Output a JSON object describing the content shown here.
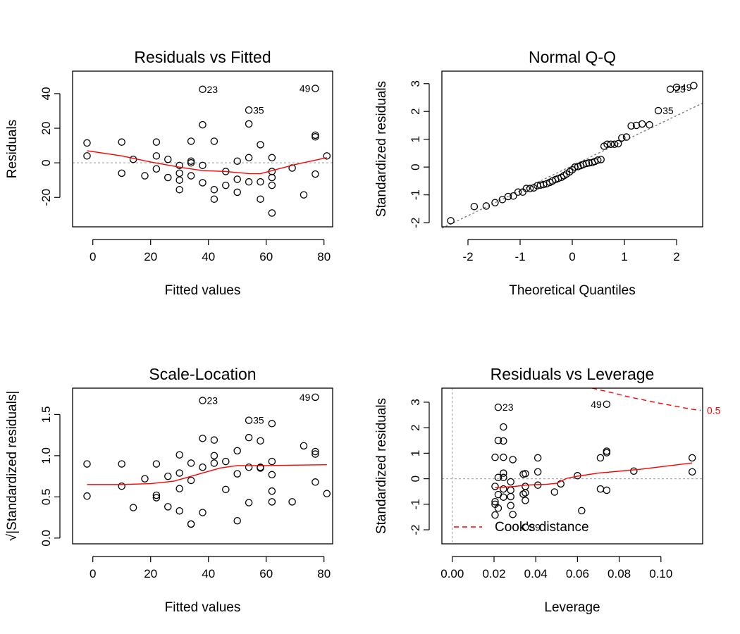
{
  "chart_data": [
    {
      "type": "scatter",
      "title": "Residuals vs Fitted",
      "xlabel": "Fitted values",
      "ylabel": "Residuals",
      "xlim": [
        -7,
        83
      ],
      "ylim": [
        -37,
        53
      ],
      "xticks": [
        0,
        20,
        40,
        60,
        80
      ],
      "yticks": [
        -20,
        0,
        20,
        40
      ],
      "tick_labels_x": [
        "0",
        "20",
        "40",
        "60",
        "80"
      ],
      "tick_labels_y": [
        "-20",
        "0",
        "20",
        "40"
      ],
      "reference_lines": [
        {
          "orientation": "h",
          "value": 0,
          "style": "dotted",
          "color": "#aaaaaa"
        }
      ],
      "points": [
        [
          -2,
          11.5
        ],
        [
          -2,
          4
        ],
        [
          10,
          12
        ],
        [
          10,
          -6
        ],
        [
          14,
          2
        ],
        [
          18,
          -7.5
        ],
        [
          22,
          12
        ],
        [
          22,
          4
        ],
        [
          22,
          -3.5
        ],
        [
          26,
          2
        ],
        [
          26,
          -8.5
        ],
        [
          30,
          -1.5
        ],
        [
          30,
          -6
        ],
        [
          30,
          -10
        ],
        [
          30,
          -15.5
        ],
        [
          34,
          12.5
        ],
        [
          34,
          1
        ],
        [
          34,
          0
        ],
        [
          34,
          -7.5
        ],
        [
          38,
          42.5
        ],
        [
          38,
          22
        ],
        [
          38,
          -1.5
        ],
        [
          38,
          -11.5
        ],
        [
          42,
          12.5
        ],
        [
          42,
          -15.5
        ],
        [
          42,
          -21
        ],
        [
          46,
          -5
        ],
        [
          46,
          -13
        ],
        [
          50,
          1
        ],
        [
          50,
          -9.5
        ],
        [
          50,
          -17
        ],
        [
          54,
          30.5
        ],
        [
          54,
          22.5
        ],
        [
          54,
          3
        ],
        [
          54,
          -11
        ],
        [
          58,
          10.5
        ],
        [
          58,
          -11
        ],
        [
          58,
          -21
        ],
        [
          62,
          3
        ],
        [
          62,
          -5
        ],
        [
          62,
          -8.5
        ],
        [
          62,
          -13
        ],
        [
          62,
          -29
        ],
        [
          69,
          -3
        ],
        [
          73,
          -18.5
        ],
        [
          77,
          43
        ],
        [
          77,
          16
        ],
        [
          77,
          15
        ],
        [
          77,
          -6.5
        ],
        [
          81,
          4
        ]
      ],
      "smoother": [
        [
          -2,
          7
        ],
        [
          10,
          4
        ],
        [
          20,
          0.5
        ],
        [
          30,
          -2.5
        ],
        [
          38,
          -4.5
        ],
        [
          46,
          -5
        ],
        [
          54,
          -6.2
        ],
        [
          58,
          -6.3
        ],
        [
          62,
          -4.5
        ],
        [
          70,
          -1
        ],
        [
          81,
          3
        ]
      ],
      "smoother_color": "#ff0000",
      "labels": [
        {
          "text": "23",
          "x": 38,
          "y": 42.5,
          "side": "right"
        },
        {
          "text": "35",
          "x": 54,
          "y": 30.5,
          "side": "right"
        },
        {
          "text": "49",
          "x": 77,
          "y": 43,
          "side": "left"
        }
      ]
    },
    {
      "type": "scatter",
      "title": "Normal Q-Q",
      "xlabel": "Theoretical Quantiles",
      "ylabel": "Standardized residuals",
      "xlim": [
        -2.5,
        2.5
      ],
      "ylim": [
        -2.15,
        3.45
      ],
      "xticks": [
        -2,
        -1,
        0,
        1,
        2
      ],
      "yticks": [
        -2,
        -1,
        0,
        1,
        2,
        3
      ],
      "tick_labels_x": [
        "-2",
        "-1",
        "0",
        "1",
        "2"
      ],
      "tick_labels_y": [
        "-2",
        "-1",
        "0",
        "1",
        "2",
        "3"
      ],
      "reference_lines": [
        {
          "type": "qqline",
          "points": [
            [
              -2.5,
              -2.2
            ],
            [
              2.5,
              2.3
            ]
          ],
          "style": "dotted",
          "color": "#777777"
        }
      ],
      "points": [
        [
          -2.33,
          -1.93
        ],
        [
          -1.88,
          -1.42
        ],
        [
          -1.65,
          -1.4
        ],
        [
          -1.48,
          -1.28
        ],
        [
          -1.34,
          -1.17
        ],
        [
          -1.23,
          -1.06
        ],
        [
          -1.13,
          -1.04
        ],
        [
          -1.04,
          -0.9
        ],
        [
          -0.95,
          -0.9
        ],
        [
          -0.88,
          -0.77
        ],
        [
          -0.81,
          -0.77
        ],
        [
          -0.74,
          -0.75
        ],
        [
          -0.67,
          -0.67
        ],
        [
          -0.61,
          -0.65
        ],
        [
          -0.55,
          -0.63
        ],
        [
          -0.49,
          -0.6
        ],
        [
          -0.43,
          -0.55
        ],
        [
          -0.38,
          -0.5
        ],
        [
          -0.32,
          -0.45
        ],
        [
          -0.27,
          -0.41
        ],
        [
          -0.21,
          -0.37
        ],
        [
          -0.16,
          -0.31
        ],
        [
          -0.11,
          -0.25
        ],
        [
          -0.05,
          -0.17
        ],
        [
          0,
          -0.1
        ],
        [
          0.05,
          0
        ],
        [
          0.11,
          0.02
        ],
        [
          0.16,
          0.05
        ],
        [
          0.21,
          0.09
        ],
        [
          0.27,
          0.13
        ],
        [
          0.32,
          0.15
        ],
        [
          0.38,
          0.16
        ],
        [
          0.43,
          0.2
        ],
        [
          0.49,
          0.25
        ],
        [
          0.55,
          0.27
        ],
        [
          0.61,
          0.75
        ],
        [
          0.67,
          0.82
        ],
        [
          0.74,
          0.82
        ],
        [
          0.81,
          0.82
        ],
        [
          0.88,
          0.84
        ],
        [
          0.95,
          1.05
        ],
        [
          1.04,
          1.08
        ],
        [
          1.13,
          1.48
        ],
        [
          1.23,
          1.5
        ],
        [
          1.34,
          1.55
        ],
        [
          1.48,
          1.52
        ],
        [
          1.65,
          2.03
        ],
        [
          1.88,
          2.8
        ],
        [
          2.0,
          2.87
        ],
        [
          2.33,
          2.93
        ]
      ],
      "labels": [
        {
          "text": "23",
          "x": 1.88,
          "y": 2.8,
          "side": "right"
        },
        {
          "text": "35",
          "x": 1.65,
          "y": 2.03,
          "side": "right"
        },
        {
          "text": "49",
          "x": 2.0,
          "y": 2.87,
          "side": "right"
        }
      ]
    },
    {
      "type": "scatter",
      "title": "Scale-Location",
      "xlabel": "Fitted values",
      "ylabel": "√|Standardized residuals|",
      "xlim": [
        -7,
        83
      ],
      "ylim": [
        -0.07,
        1.82
      ],
      "xticks": [
        0,
        20,
        40,
        60,
        80
      ],
      "yticks": [
        0.0,
        0.5,
        1.0,
        1.5
      ],
      "tick_labels_x": [
        "0",
        "20",
        "40",
        "60",
        "80"
      ],
      "tick_labels_y": [
        "0.0",
        "0.5",
        "1.0",
        "1.5"
      ],
      "points": [
        [
          -2,
          0.9
        ],
        [
          -2,
          0.51
        ],
        [
          10,
          0.9
        ],
        [
          10,
          0.63
        ],
        [
          14,
          0.37
        ],
        [
          18,
          0.72
        ],
        [
          22,
          0.9
        ],
        [
          22,
          0.52
        ],
        [
          22,
          0.49
        ],
        [
          26,
          0.75
        ],
        [
          26,
          0.38
        ],
        [
          30,
          1.01
        ],
        [
          30,
          0.79
        ],
        [
          30,
          0.6
        ],
        [
          30,
          0.33
        ],
        [
          34,
          0.91
        ],
        [
          34,
          0.7
        ],
        [
          34,
          0.17
        ],
        [
          34,
          0.17
        ],
        [
          38,
          1.67
        ],
        [
          38,
          1.21
        ],
        [
          38,
          0.86
        ],
        [
          38,
          0.31
        ],
        [
          42,
          1.19
        ],
        [
          42,
          1.0
        ],
        [
          42,
          0.91
        ],
        [
          46,
          0.93
        ],
        [
          46,
          0.59
        ],
        [
          50,
          1.06
        ],
        [
          50,
          0.78
        ],
        [
          50,
          0.21
        ],
        [
          54,
          1.43
        ],
        [
          54,
          1.22
        ],
        [
          54,
          0.86
        ],
        [
          54,
          0.43
        ],
        [
          58,
          1.18
        ],
        [
          58,
          0.86
        ],
        [
          58,
          0.85
        ],
        [
          62,
          1.39
        ],
        [
          62,
          0.93
        ],
        [
          62,
          0.77
        ],
        [
          62,
          0.57
        ],
        [
          62,
          0.44
        ],
        [
          69,
          0.44
        ],
        [
          73,
          1.12
        ],
        [
          77,
          1.71
        ],
        [
          77,
          1.05
        ],
        [
          77,
          1.02
        ],
        [
          77,
          0.68
        ],
        [
          81,
          0.54
        ]
      ],
      "smoother": [
        [
          -2,
          0.65
        ],
        [
          10,
          0.65
        ],
        [
          20,
          0.66
        ],
        [
          28,
          0.69
        ],
        [
          36,
          0.77
        ],
        [
          44,
          0.85
        ],
        [
          50,
          0.88
        ],
        [
          60,
          0.88
        ],
        [
          81,
          0.89
        ]
      ],
      "smoother_color": "#ff0000",
      "labels": [
        {
          "text": "23",
          "x": 38,
          "y": 1.67,
          "side": "right"
        },
        {
          "text": "35",
          "x": 54,
          "y": 1.43,
          "side": "right"
        },
        {
          "text": "49",
          "x": 77,
          "y": 1.71,
          "side": "left"
        }
      ]
    },
    {
      "type": "scatter",
      "title": "Residuals vs Leverage",
      "xlabel": "Leverage",
      "ylabel": "Standardized residuals",
      "xlim": [
        -0.005,
        0.12
      ],
      "ylim": [
        -2.55,
        3.55
      ],
      "xticks": [
        0.0,
        0.02,
        0.04,
        0.06,
        0.08,
        0.1
      ],
      "yticks": [
        -2,
        -1,
        0,
        1,
        2,
        3
      ],
      "tick_labels_x": [
        "0.00",
        "0.02",
        "0.04",
        "0.06",
        "0.08",
        "0.10"
      ],
      "tick_labels_y": [
        "-2",
        "-1",
        "0",
        "1",
        "2",
        "3"
      ],
      "reference_lines": [
        {
          "orientation": "h",
          "value": 0,
          "style": "dotted",
          "color": "#aaaaaa"
        },
        {
          "orientation": "v",
          "value": 0,
          "style": "dotted",
          "color": "#aaaaaa"
        }
      ],
      "points": [
        [
          0.0205,
          -0.3
        ],
        [
          0.0205,
          -0.9
        ],
        [
          0.0205,
          -1.0
        ],
        [
          0.0205,
          -1.42
        ],
        [
          0.0205,
          0.84
        ],
        [
          0.022,
          2.8
        ],
        [
          0.022,
          1.5
        ],
        [
          0.022,
          0.05
        ],
        [
          0.022,
          -0.62
        ],
        [
          0.022,
          -1.15
        ],
        [
          0.0245,
          2.03
        ],
        [
          0.0245,
          1.48
        ],
        [
          0.0245,
          0.84
        ],
        [
          0.0245,
          0.22
        ],
        [
          0.0245,
          0.05
        ],
        [
          0.0245,
          -0.4
        ],
        [
          0.0245,
          -0.72
        ],
        [
          0.028,
          -0.12
        ],
        [
          0.028,
          -0.45
        ],
        [
          0.028,
          -0.7
        ],
        [
          0.028,
          -1.05
        ],
        [
          0.029,
          0.75
        ],
        [
          0.029,
          -1.4
        ],
        [
          0.034,
          0.18
        ],
        [
          0.034,
          -0.6
        ],
        [
          0.035,
          0.2
        ],
        [
          0.035,
          -0.3
        ],
        [
          0.035,
          -0.55
        ],
        [
          0.035,
          -0.85
        ],
        [
          0.035,
          -1.9
        ],
        [
          0.041,
          0.82
        ],
        [
          0.041,
          0.27
        ],
        [
          0.041,
          -0.25
        ],
        [
          0.049,
          -0.52
        ],
        [
          0.052,
          -0.2
        ],
        [
          0.06,
          0.12
        ],
        [
          0.062,
          -1.25
        ],
        [
          0.071,
          0.82
        ],
        [
          0.071,
          -0.4
        ],
        [
          0.074,
          2.92
        ],
        [
          0.074,
          1.08
        ],
        [
          0.074,
          1.02
        ],
        [
          0.074,
          -0.45
        ],
        [
          0.087,
          0.3
        ],
        [
          0.115,
          0.82
        ],
        [
          0.115,
          0.27
        ]
      ],
      "smoother": [
        [
          0.0205,
          -0.35
        ],
        [
          0.025,
          -0.33
        ],
        [
          0.03,
          -0.3
        ],
        [
          0.035,
          -0.25
        ],
        [
          0.04,
          -0.23
        ],
        [
          0.045,
          -0.22
        ],
        [
          0.05,
          -0.18
        ],
        [
          0.055,
          0.02
        ],
        [
          0.06,
          0.1
        ],
        [
          0.07,
          0.22
        ],
        [
          0.09,
          0.37
        ],
        [
          0.115,
          0.62
        ]
      ],
      "smoother_color": "#ff0000",
      "cooks_contour": [
        [
          0.067,
          3.55
        ],
        [
          0.075,
          3.4
        ],
        [
          0.085,
          3.2
        ],
        [
          0.1,
          2.95
        ],
        [
          0.115,
          2.72
        ],
        [
          0.119,
          2.68
        ]
      ],
      "cooks_label": "0.5",
      "legend": {
        "label": "Cook's distance",
        "position": "bottom-left",
        "style": "dashed",
        "color": "#ff0000"
      },
      "labels": [
        {
          "text": "23",
          "x": 0.022,
          "y": 2.8,
          "side": "right"
        },
        {
          "text": "49",
          "x": 0.074,
          "y": 2.92,
          "side": "left"
        },
        {
          "text": "39",
          "x": 0.035,
          "y": -1.9,
          "side": "right"
        }
      ]
    }
  ]
}
